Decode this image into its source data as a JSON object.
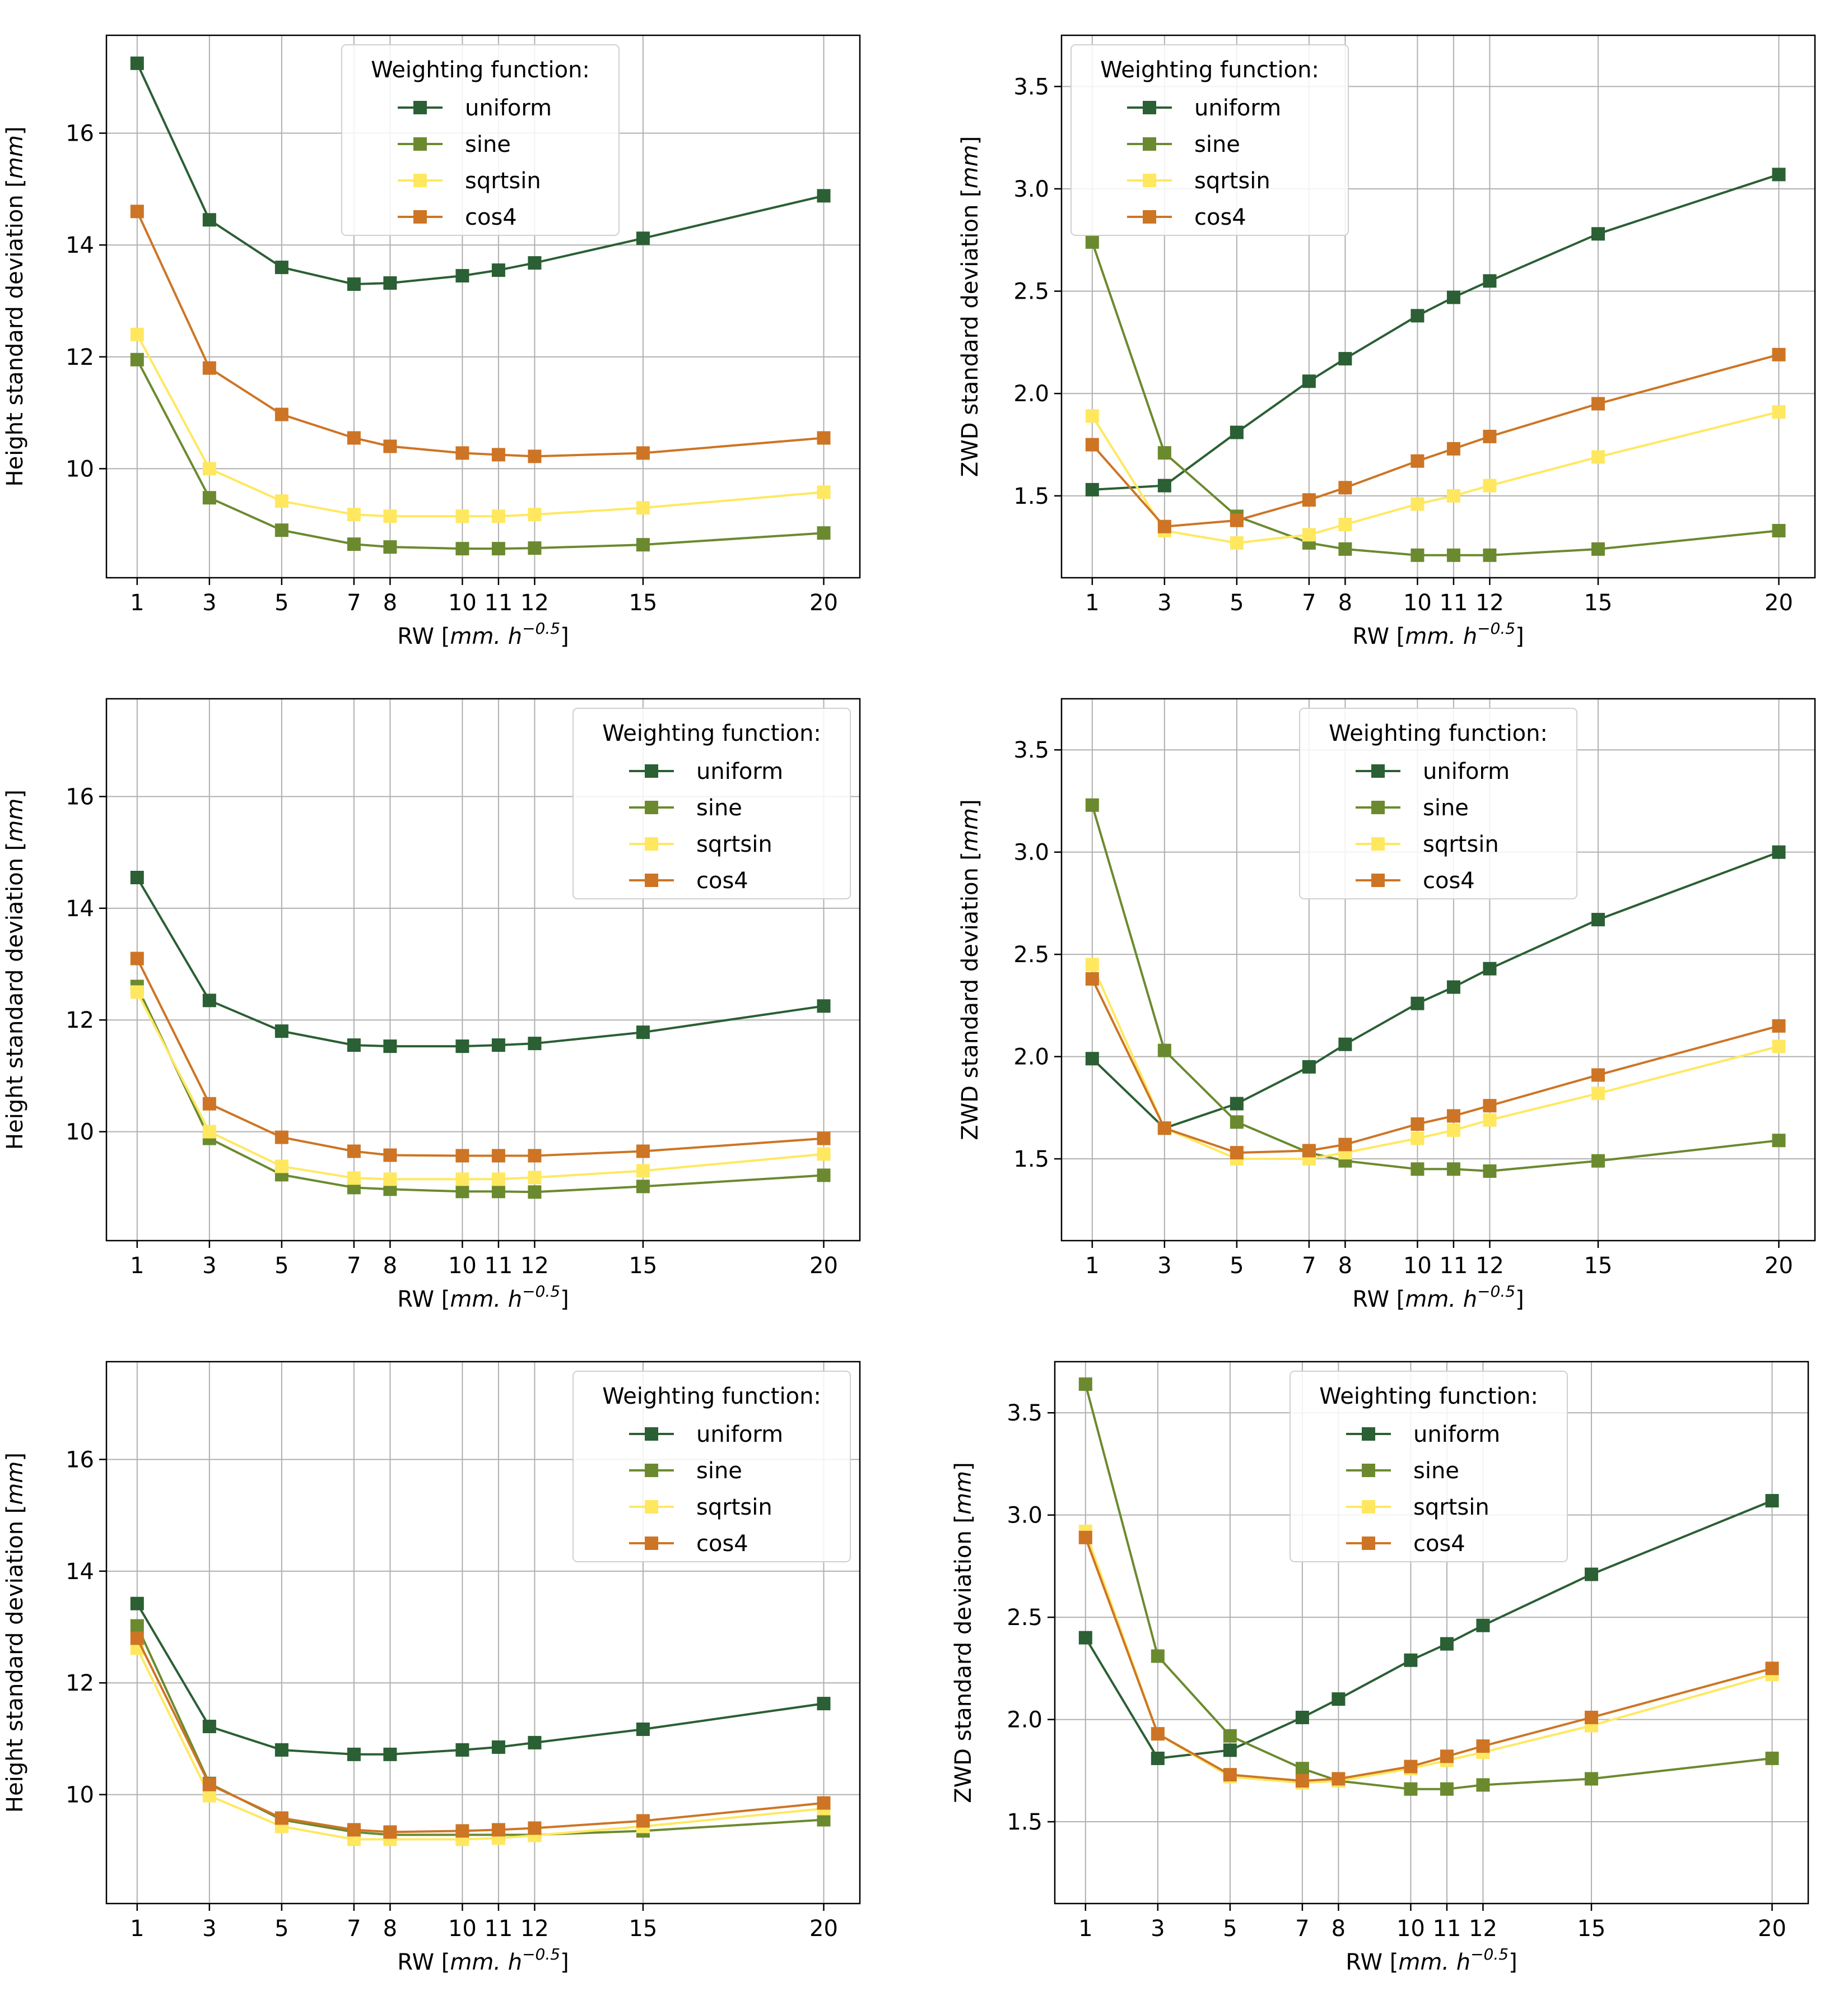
{
  "colors": {
    "uniform": "#2b5f34",
    "sine": "#6b8a2f",
    "sqrtsin": "#ffe860",
    "cos4": "#cd7525",
    "grid": "#b0b0b0",
    "axis": "#000000"
  },
  "chart_data": [
    {
      "type": "line",
      "title": "",
      "xlabel": "RW",
      "xlabel_unit": "mm. h",
      "xlabel_exp": "−0.5",
      "ylabel": "Height standard deviation",
      "ylabel_unit": "mm",
      "x": [
        1,
        3,
        5,
        7,
        8,
        10,
        11,
        12,
        15,
        20
      ],
      "xticks": [
        "1",
        "3",
        "5",
        "7",
        "8",
        "10",
        "11",
        "12",
        "15",
        "20"
      ],
      "xlim": [
        0.15,
        21.0
      ],
      "ylim": [
        8.05,
        17.75
      ],
      "yticks": [
        10,
        12,
        14,
        16
      ],
      "ytick_labels": [
        "10",
        "12",
        "14",
        "16"
      ],
      "legend": {
        "title": "Weighting function:",
        "position": "top-center"
      },
      "series": [
        {
          "name": "uniform",
          "values": [
            17.25,
            14.45,
            13.6,
            13.3,
            13.32,
            13.45,
            13.55,
            13.68,
            14.12,
            14.88
          ]
        },
        {
          "name": "sine",
          "values": [
            11.95,
            9.48,
            8.9,
            8.65,
            8.6,
            8.57,
            8.57,
            8.58,
            8.64,
            8.85
          ]
        },
        {
          "name": "sqrtsin",
          "values": [
            12.4,
            10.0,
            9.42,
            9.18,
            9.15,
            9.15,
            9.15,
            9.18,
            9.3,
            9.58
          ]
        },
        {
          "name": "cos4",
          "values": [
            14.6,
            11.8,
            10.97,
            10.55,
            10.4,
            10.28,
            10.25,
            10.22,
            10.28,
            10.55
          ]
        }
      ]
    },
    {
      "type": "line",
      "title": "",
      "xlabel": "RW",
      "xlabel_unit": "mm. h",
      "xlabel_exp": "−0.5",
      "ylabel": "ZWD standard deviation",
      "ylabel_unit": "mm",
      "x": [
        1,
        3,
        5,
        7,
        8,
        10,
        11,
        12,
        15,
        20
      ],
      "xticks": [
        "1",
        "3",
        "5",
        "7",
        "8",
        "10",
        "11",
        "12",
        "15",
        "20"
      ],
      "xlim": [
        0.15,
        21.0
      ],
      "ylim": [
        1.1,
        3.75
      ],
      "yticks": [
        1.5,
        2.0,
        2.5,
        3.0,
        3.5
      ],
      "ytick_labels": [
        "1.5",
        "2.0",
        "2.5",
        "3.0",
        "3.5"
      ],
      "legend": {
        "title": "Weighting function:",
        "position": "top-left"
      },
      "series": [
        {
          "name": "uniform",
          "values": [
            1.53,
            1.55,
            1.81,
            2.06,
            2.17,
            2.38,
            2.47,
            2.55,
            2.78,
            3.07
          ]
        },
        {
          "name": "sine",
          "values": [
            2.74,
            1.71,
            1.4,
            1.27,
            1.24,
            1.21,
            1.21,
            1.21,
            1.24,
            1.33
          ]
        },
        {
          "name": "sqrtsin",
          "values": [
            1.89,
            1.33,
            1.27,
            1.31,
            1.36,
            1.46,
            1.5,
            1.55,
            1.69,
            1.91
          ]
        },
        {
          "name": "cos4",
          "values": [
            1.75,
            1.35,
            1.38,
            1.48,
            1.54,
            1.67,
            1.73,
            1.79,
            1.95,
            2.19
          ]
        }
      ]
    },
    {
      "type": "line",
      "title": "",
      "xlabel": "RW",
      "xlabel_unit": "mm. h",
      "xlabel_exp": "−0.5",
      "ylabel": "Height standard deviation",
      "ylabel_unit": "mm",
      "x": [
        1,
        3,
        5,
        7,
        8,
        10,
        11,
        12,
        15,
        20
      ],
      "xticks": [
        "1",
        "3",
        "5",
        "7",
        "8",
        "10",
        "11",
        "12",
        "15",
        "20"
      ],
      "xlim": [
        0.15,
        21.0
      ],
      "ylim": [
        8.05,
        17.75
      ],
      "yticks": [
        10,
        12,
        14,
        16
      ],
      "ytick_labels": [
        "10",
        "12",
        "14",
        "16"
      ],
      "legend": {
        "title": "Weighting function:",
        "position": "top-right"
      },
      "series": [
        {
          "name": "uniform",
          "values": [
            14.55,
            12.35,
            11.8,
            11.55,
            11.53,
            11.53,
            11.55,
            11.58,
            11.78,
            12.25
          ]
        },
        {
          "name": "sine",
          "values": [
            12.6,
            9.88,
            9.23,
            9.0,
            8.97,
            8.93,
            8.93,
            8.92,
            9.02,
            9.22
          ]
        },
        {
          "name": "sqrtsin",
          "values": [
            12.5,
            10.0,
            9.38,
            9.17,
            9.15,
            9.15,
            9.15,
            9.18,
            9.3,
            9.6
          ]
        },
        {
          "name": "cos4",
          "values": [
            13.1,
            10.5,
            9.9,
            9.65,
            9.58,
            9.57,
            9.57,
            9.57,
            9.65,
            9.88
          ]
        }
      ]
    },
    {
      "type": "line",
      "title": "",
      "xlabel": "RW",
      "xlabel_unit": "mm. h",
      "xlabel_exp": "−0.5",
      "ylabel": "ZWD standard deviation",
      "ylabel_unit": "mm",
      "x": [
        1,
        3,
        5,
        7,
        8,
        10,
        11,
        12,
        15,
        20
      ],
      "xticks": [
        "1",
        "3",
        "5",
        "7",
        "8",
        "10",
        "11",
        "12",
        "15",
        "20"
      ],
      "xlim": [
        0.15,
        21.0
      ],
      "ylim": [
        1.1,
        3.75
      ],
      "yticks": [
        1.5,
        2.0,
        2.5,
        3.0,
        3.5
      ],
      "ytick_labels": [
        "1.5",
        "2.0",
        "2.5",
        "3.0",
        "3.5"
      ],
      "legend": {
        "title": "Weighting function:",
        "position": "top-right"
      },
      "series": [
        {
          "name": "uniform",
          "values": [
            1.99,
            1.65,
            1.77,
            1.95,
            2.06,
            2.26,
            2.34,
            2.43,
            2.67,
            3.0
          ]
        },
        {
          "name": "sine",
          "values": [
            3.23,
            2.03,
            1.68,
            1.53,
            1.49,
            1.45,
            1.45,
            1.44,
            1.49,
            1.59
          ]
        },
        {
          "name": "sqrtsin",
          "values": [
            2.45,
            1.65,
            1.5,
            1.5,
            1.53,
            1.6,
            1.64,
            1.69,
            1.82,
            2.05
          ]
        },
        {
          "name": "cos4",
          "values": [
            2.38,
            1.65,
            1.53,
            1.54,
            1.57,
            1.67,
            1.71,
            1.76,
            1.91,
            2.15
          ]
        }
      ]
    },
    {
      "type": "line",
      "title": "",
      "xlabel": "RW",
      "xlabel_unit": "mm. h",
      "xlabel_exp": "−0.5",
      "ylabel": "Height standard deviation",
      "ylabel_unit": "mm",
      "x": [
        1,
        3,
        5,
        7,
        8,
        10,
        11,
        12,
        15,
        20
      ],
      "xticks": [
        "1",
        "3",
        "5",
        "7",
        "8",
        "10",
        "11",
        "12",
        "15",
        "20"
      ],
      "xlim": [
        0.15,
        21.0
      ],
      "ylim": [
        8.05,
        17.75
      ],
      "yticks": [
        10,
        12,
        14,
        16
      ],
      "ytick_labels": [
        "10",
        "12",
        "14",
        "16"
      ],
      "legend": {
        "title": "Weighting function:",
        "position": "top-right"
      },
      "series": [
        {
          "name": "uniform",
          "values": [
            13.42,
            11.22,
            10.8,
            10.72,
            10.72,
            10.8,
            10.85,
            10.93,
            11.17,
            11.63
          ]
        },
        {
          "name": "sine",
          "values": [
            13.02,
            10.2,
            9.55,
            9.33,
            9.28,
            9.28,
            9.28,
            9.28,
            9.35,
            9.55
          ]
        },
        {
          "name": "sqrtsin",
          "values": [
            12.62,
            9.98,
            9.43,
            9.2,
            9.2,
            9.2,
            9.22,
            9.27,
            9.43,
            9.75
          ]
        },
        {
          "name": "cos4",
          "values": [
            12.8,
            10.18,
            9.58,
            9.37,
            9.33,
            9.35,
            9.37,
            9.4,
            9.53,
            9.85
          ]
        }
      ]
    },
    {
      "type": "line",
      "title": "",
      "xlabel": "RW",
      "xlabel_unit": "mm. h",
      "xlabel_exp": "−0.5",
      "ylabel": "ZWD standard deviation",
      "ylabel_unit": "mm",
      "x": [
        1,
        3,
        5,
        7,
        8,
        10,
        11,
        12,
        15,
        20
      ],
      "xticks": [
        "1",
        "3",
        "5",
        "7",
        "8",
        "10",
        "11",
        "12",
        "15",
        "20"
      ],
      "xlim": [
        0.15,
        21.0
      ],
      "ylim": [
        1.1,
        3.75
      ],
      "yticks": [
        1.5,
        2.0,
        2.5,
        3.0,
        3.5
      ],
      "ytick_labels": [
        "1.5",
        "2.0",
        "2.5",
        "3.0",
        "3.5"
      ],
      "legend": {
        "title": "Weighting function:",
        "position": "top-center"
      },
      "series": [
        {
          "name": "uniform",
          "values": [
            2.4,
            1.81,
            1.85,
            2.01,
            2.1,
            2.29,
            2.37,
            2.46,
            2.71,
            3.07
          ]
        },
        {
          "name": "sine",
          "values": [
            3.64,
            2.31,
            1.92,
            1.76,
            1.7,
            1.66,
            1.66,
            1.68,
            1.71,
            1.81
          ]
        },
        {
          "name": "sqrtsin",
          "values": [
            2.92,
            1.93,
            1.72,
            1.69,
            1.7,
            1.76,
            1.8,
            1.84,
            1.97,
            2.22
          ]
        },
        {
          "name": "cos4",
          "values": [
            2.89,
            1.93,
            1.73,
            1.7,
            1.71,
            1.77,
            1.82,
            1.87,
            2.01,
            2.25
          ]
        }
      ]
    }
  ]
}
